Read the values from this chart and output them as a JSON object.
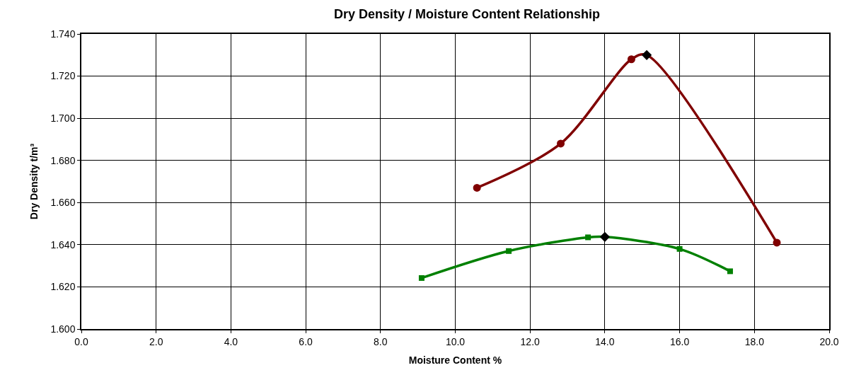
{
  "chart_data": {
    "type": "line",
    "title": "Dry Density / Moisture Content Relationship",
    "xlabel": "Moisture Content %",
    "ylabel": "Dry Density t/m³",
    "xlim": [
      0,
      20
    ],
    "ylim": [
      1.6,
      1.74
    ],
    "xticks": [
      {
        "value": 0,
        "label": "0.0"
      },
      {
        "value": 2,
        "label": "2.0"
      },
      {
        "value": 4,
        "label": "4.0"
      },
      {
        "value": 6,
        "label": "6.0"
      },
      {
        "value": 8,
        "label": "8.0"
      },
      {
        "value": 10,
        "label": "10.0"
      },
      {
        "value": 12,
        "label": "12.0"
      },
      {
        "value": 14,
        "label": "14.0"
      },
      {
        "value": 16,
        "label": "16.0"
      },
      {
        "value": 18,
        "label": "18.0"
      },
      {
        "value": 20,
        "label": "20.0"
      }
    ],
    "yticks": [
      {
        "value": 1.6,
        "label": "1.600"
      },
      {
        "value": 1.62,
        "label": "1.620"
      },
      {
        "value": 1.64,
        "label": "1.640"
      },
      {
        "value": 1.66,
        "label": "1.660"
      },
      {
        "value": 1.68,
        "label": "1.680"
      },
      {
        "value": 1.7,
        "label": "1.700"
      },
      {
        "value": 1.72,
        "label": "1.720"
      },
      {
        "value": 1.74,
        "label": "1.740"
      }
    ],
    "grid": true,
    "legend": false,
    "series": [
      {
        "color": "#800000",
        "marker": "none",
        "x": [
          10.58,
          12.82,
          14.71,
          15.12,
          18.6
        ],
        "values": [
          1.667,
          1.688,
          1.728,
          1.73,
          1.641
        ]
      },
      {
        "type": "scatter",
        "color": "#800000",
        "marker": "circle",
        "x": [
          10.58,
          12.82,
          14.71,
          18.6
        ],
        "values": [
          1.667,
          1.688,
          1.728,
          1.641
        ]
      },
      {
        "color": "#008000",
        "marker": "none",
        "x": [
          9.1,
          11.43,
          13.55,
          14.0,
          16.0,
          17.35
        ],
        "values": [
          1.6242,
          1.637,
          1.6435,
          1.6437,
          1.638,
          1.6274
        ]
      },
      {
        "type": "scatter",
        "color": "#008000",
        "marker": "square",
        "x": [
          9.1,
          11.43,
          13.55,
          16.0,
          17.35
        ],
        "values": [
          1.6242,
          1.637,
          1.6435,
          1.638,
          1.6274
        ]
      },
      {
        "type": "scatter",
        "color": "#000000",
        "marker": "diamond",
        "x": [
          15.12,
          14.0
        ],
        "values": [
          1.73,
          1.6437
        ]
      }
    ]
  }
}
